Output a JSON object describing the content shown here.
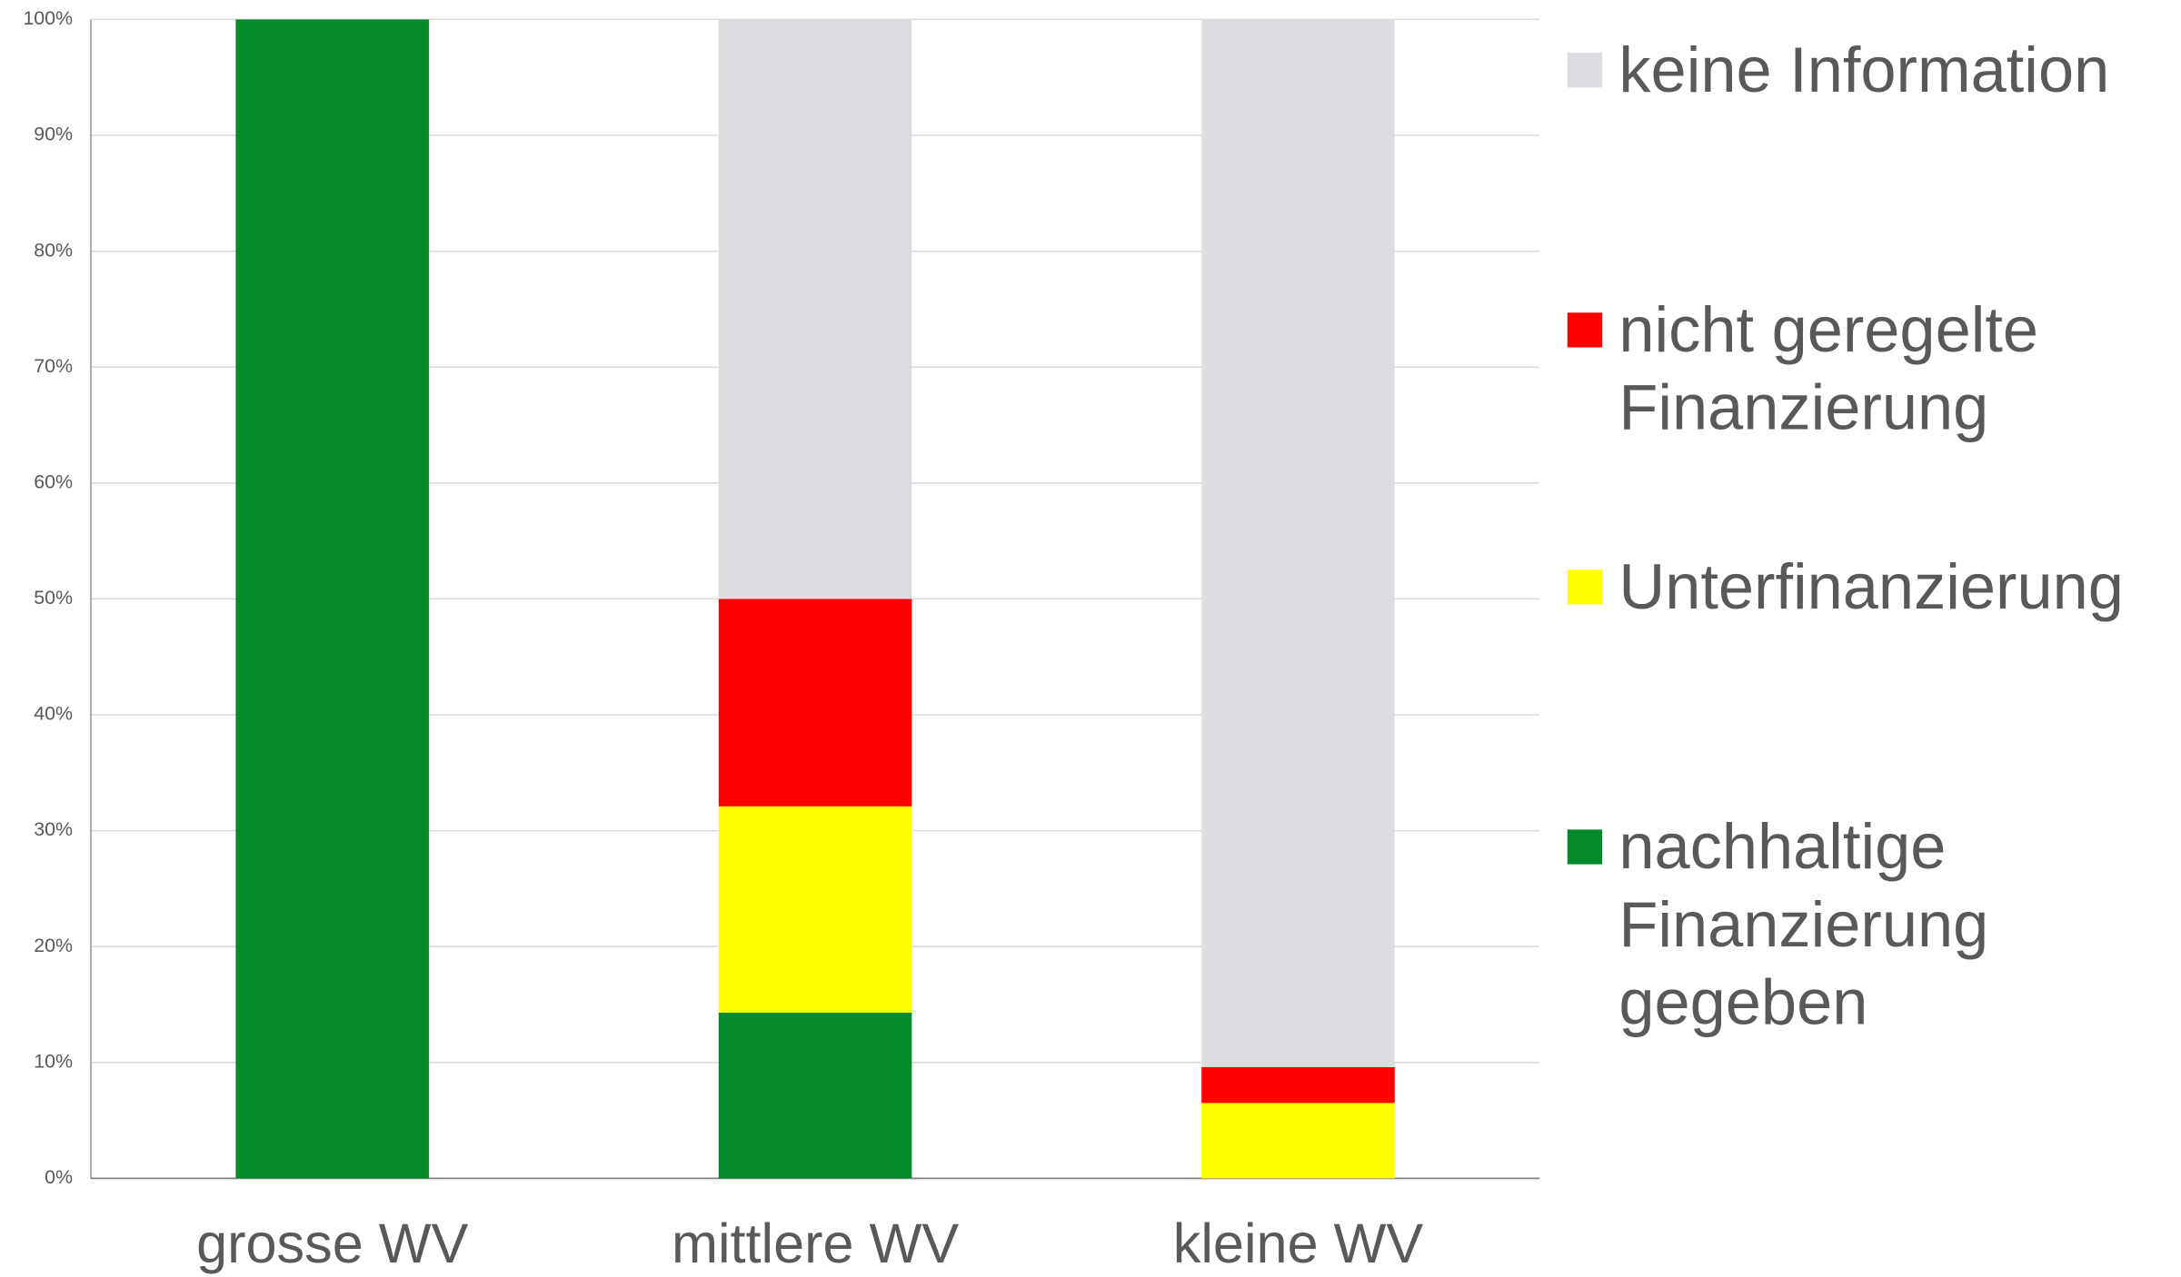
{
  "chart_data": {
    "type": "stacked_bar",
    "categories": [
      "grosse WV",
      "mittlere WV",
      "kleine WV"
    ],
    "series": [
      {
        "name": "nachhaltige Finanzierung gegeben",
        "color": "#038a2b",
        "values": [
          100,
          14.3,
          0
        ]
      },
      {
        "name": "Unterfinanzierung",
        "color": "#ffff00",
        "values": [
          0,
          17.8,
          6.5
        ]
      },
      {
        "name": "nicht geregelte Finanzierung",
        "color": "#ff0000",
        "values": [
          0,
          17.9,
          3.1
        ]
      },
      {
        "name": "keine Information",
        "color": "#dcdde0",
        "values": [
          0,
          50,
          90.4
        ]
      }
    ],
    "ylim": [
      0,
      100
    ],
    "yticks": [
      {
        "value": 0,
        "label": "0%"
      },
      {
        "value": 10,
        "label": "10%"
      },
      {
        "value": 20,
        "label": "20%"
      },
      {
        "value": 30,
        "label": "30%"
      },
      {
        "value": 40,
        "label": "40%"
      },
      {
        "value": 50,
        "label": "50%"
      },
      {
        "value": 60,
        "label": "60%"
      },
      {
        "value": 70,
        "label": "70%"
      },
      {
        "value": 80,
        "label": "80%"
      },
      {
        "value": 90,
        "label": "90%"
      },
      {
        "value": 100,
        "label": "100%"
      }
    ],
    "grid": true,
    "legend": "right"
  }
}
